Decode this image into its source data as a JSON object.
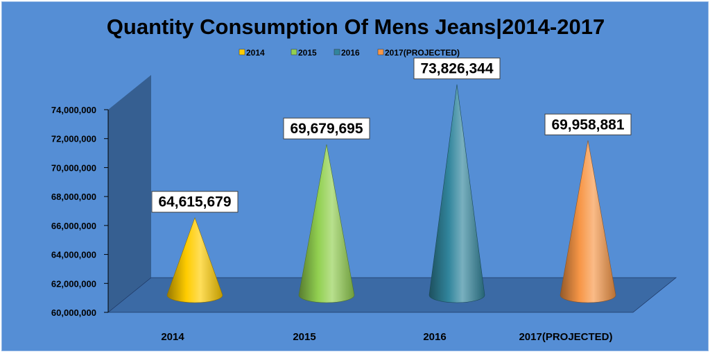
{
  "chart_data": {
    "type": "bar",
    "shape": "cone",
    "title": "Quantity Consumption Of Mens Jeans|2014-2017",
    "xlabel": "",
    "ylabel": "",
    "categories": [
      "2014",
      "2015",
      "2016",
      "2017(PROJECTED)"
    ],
    "series": [
      {
        "name": "2014",
        "color": "#ffcc00",
        "values": [
          64615679,
          null,
          null,
          null
        ]
      },
      {
        "name": "2015",
        "color": "#92d050",
        "values": [
          null,
          69679695,
          null,
          null
        ]
      },
      {
        "name": "2016",
        "color": "#31859c",
        "values": [
          null,
          null,
          73826344,
          null
        ]
      },
      {
        "name": "2017(PROJECTED)",
        "color": "#f79646",
        "values": [
          null,
          null,
          null,
          69958881
        ]
      }
    ],
    "data_labels": [
      "64,615,679",
      "69,679,695",
      "73,826,344",
      "69,958,881"
    ],
    "ylim": [
      60000000,
      74000000
    ],
    "yticks": [
      60000000,
      62000000,
      64000000,
      66000000,
      68000000,
      70000000,
      72000000,
      74000000
    ],
    "ytick_labels": [
      "60,000,000",
      "62,000,000",
      "64,000,000",
      "66,000,000",
      "68,000,000",
      "70,000,000",
      "72,000,000",
      "74,000,000"
    ],
    "legend_position": "top",
    "grid": false,
    "background_color": "#558ed5"
  }
}
